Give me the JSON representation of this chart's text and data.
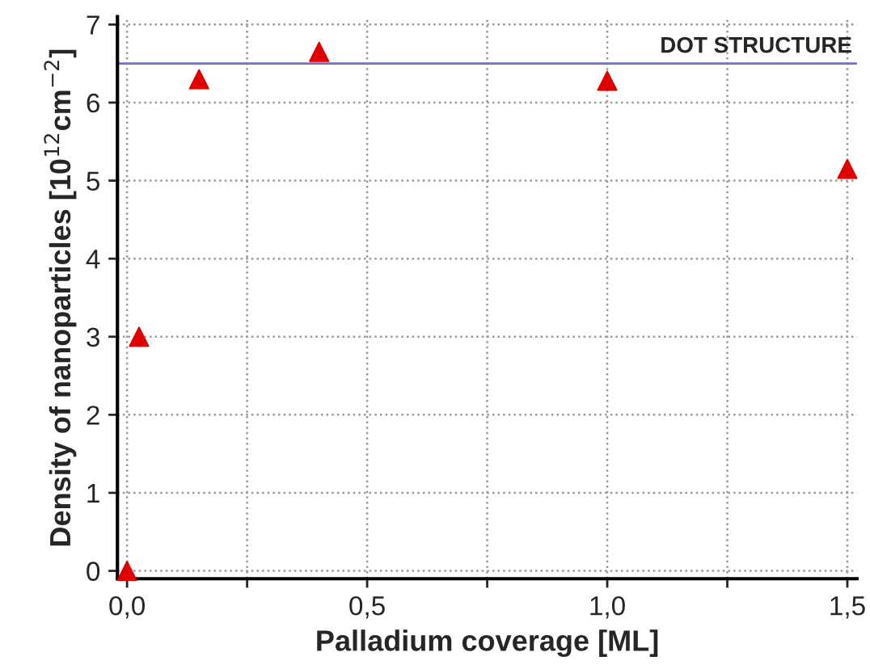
{
  "chart_data": {
    "type": "scatter",
    "xlabel": "Palladium coverage [ML]",
    "ylabel": "Density of nanoparticles [10$^{12}$cm$^{−2}$]",
    "x": [
      0,
      0.025,
      0.15,
      0.4,
      1.0,
      1.5
    ],
    "series": [
      {
        "color": "#e00000",
        "values": [
          0,
          3.0,
          6.3,
          6.65,
          6.28,
          5.15
        ]
      }
    ],
    "marker": "triangle",
    "grid": true,
    "xlim": [
      -0.02,
      1.52
    ],
    "ylim": [
      -0.1,
      7.1
    ],
    "xticks": [
      {
        "value": 0,
        "label": "0,0"
      },
      {
        "value": 0.25,
        "label": null
      },
      {
        "value": 0.5,
        "label": "0,5"
      },
      {
        "value": 0.75,
        "label": null
      },
      {
        "value": 1.0,
        "label": "1,0"
      },
      {
        "value": 1.25,
        "label": null
      },
      {
        "value": 1.5,
        "label": "1,5"
      }
    ],
    "yticks": [
      0,
      1,
      2,
      3,
      4,
      5,
      6,
      7
    ],
    "ref_lines": [
      {
        "axis": "y",
        "value": 6.5,
        "label": "DOT STRUCTURE",
        "color": "#7070d0"
      }
    ]
  }
}
